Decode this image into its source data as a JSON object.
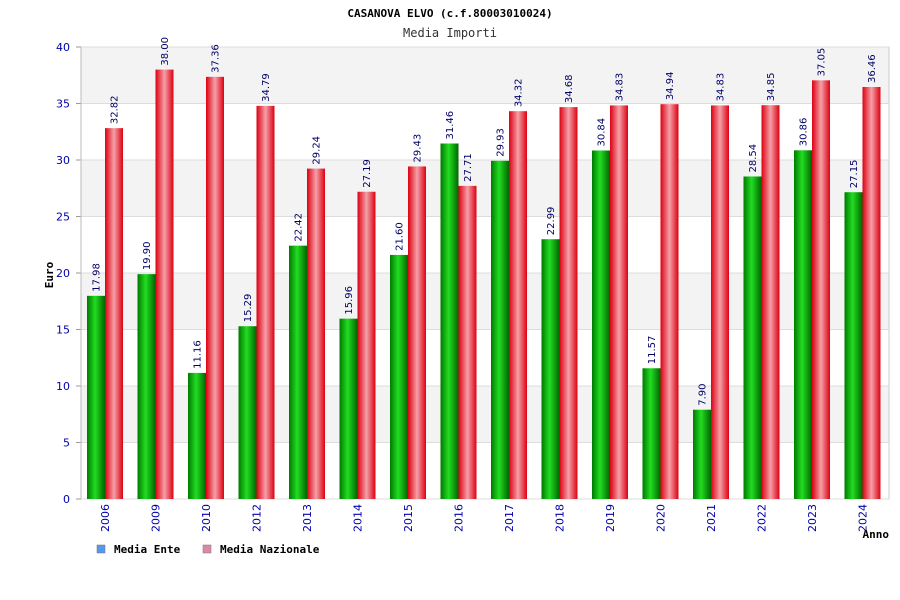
{
  "chart_data": {
    "type": "bar",
    "title": "CASANOVA ELVO (c.f.80003010024)",
    "subtitle": "Media Importi",
    "ylabel": "Euro",
    "xlabel": "Anno",
    "ylim": [
      0,
      40
    ],
    "yticks": [
      0,
      5,
      10,
      15,
      20,
      25,
      30,
      35,
      40
    ],
    "grid": true,
    "legend_position": "bottom-left",
    "categories": [
      "2006",
      "2009",
      "2010",
      "2012",
      "2013",
      "2014",
      "2015",
      "2016",
      "2017",
      "2018",
      "2019",
      "2020",
      "2021",
      "2022",
      "2023",
      "2024"
    ],
    "series": [
      {
        "name": "Media Ente",
        "color": "#00aa00",
        "legend_color": "#5599ee",
        "values": [
          17.98,
          19.9,
          11.16,
          15.29,
          22.42,
          15.96,
          21.6,
          31.46,
          29.93,
          22.99,
          30.84,
          11.57,
          7.9,
          28.54,
          30.86,
          27.15
        ],
        "labels": [
          "17.98",
          "19.90",
          "11.16",
          "15.29",
          "22.42",
          "15.96",
          "21.60",
          "31.46",
          "29.93",
          "22.99",
          "30.84",
          "11.57",
          "7.90",
          "28.54",
          "30.86",
          "27.15"
        ]
      },
      {
        "name": "Media Nazionale",
        "color": "#ee1122",
        "legend_color": "#dd88aa",
        "values": [
          32.82,
          38.0,
          37.36,
          34.79,
          29.24,
          27.19,
          29.43,
          27.71,
          34.32,
          34.68,
          34.83,
          34.94,
          34.83,
          34.85,
          37.05,
          36.46
        ],
        "labels": [
          "32.82",
          "38.00",
          "37.36",
          "34.79",
          "29.24",
          "27.19",
          "29.43",
          "27.71",
          "34.32",
          "34.68",
          "34.83",
          "34.94",
          "34.83",
          "34.85",
          "37.05",
          "36.46"
        ]
      }
    ]
  }
}
